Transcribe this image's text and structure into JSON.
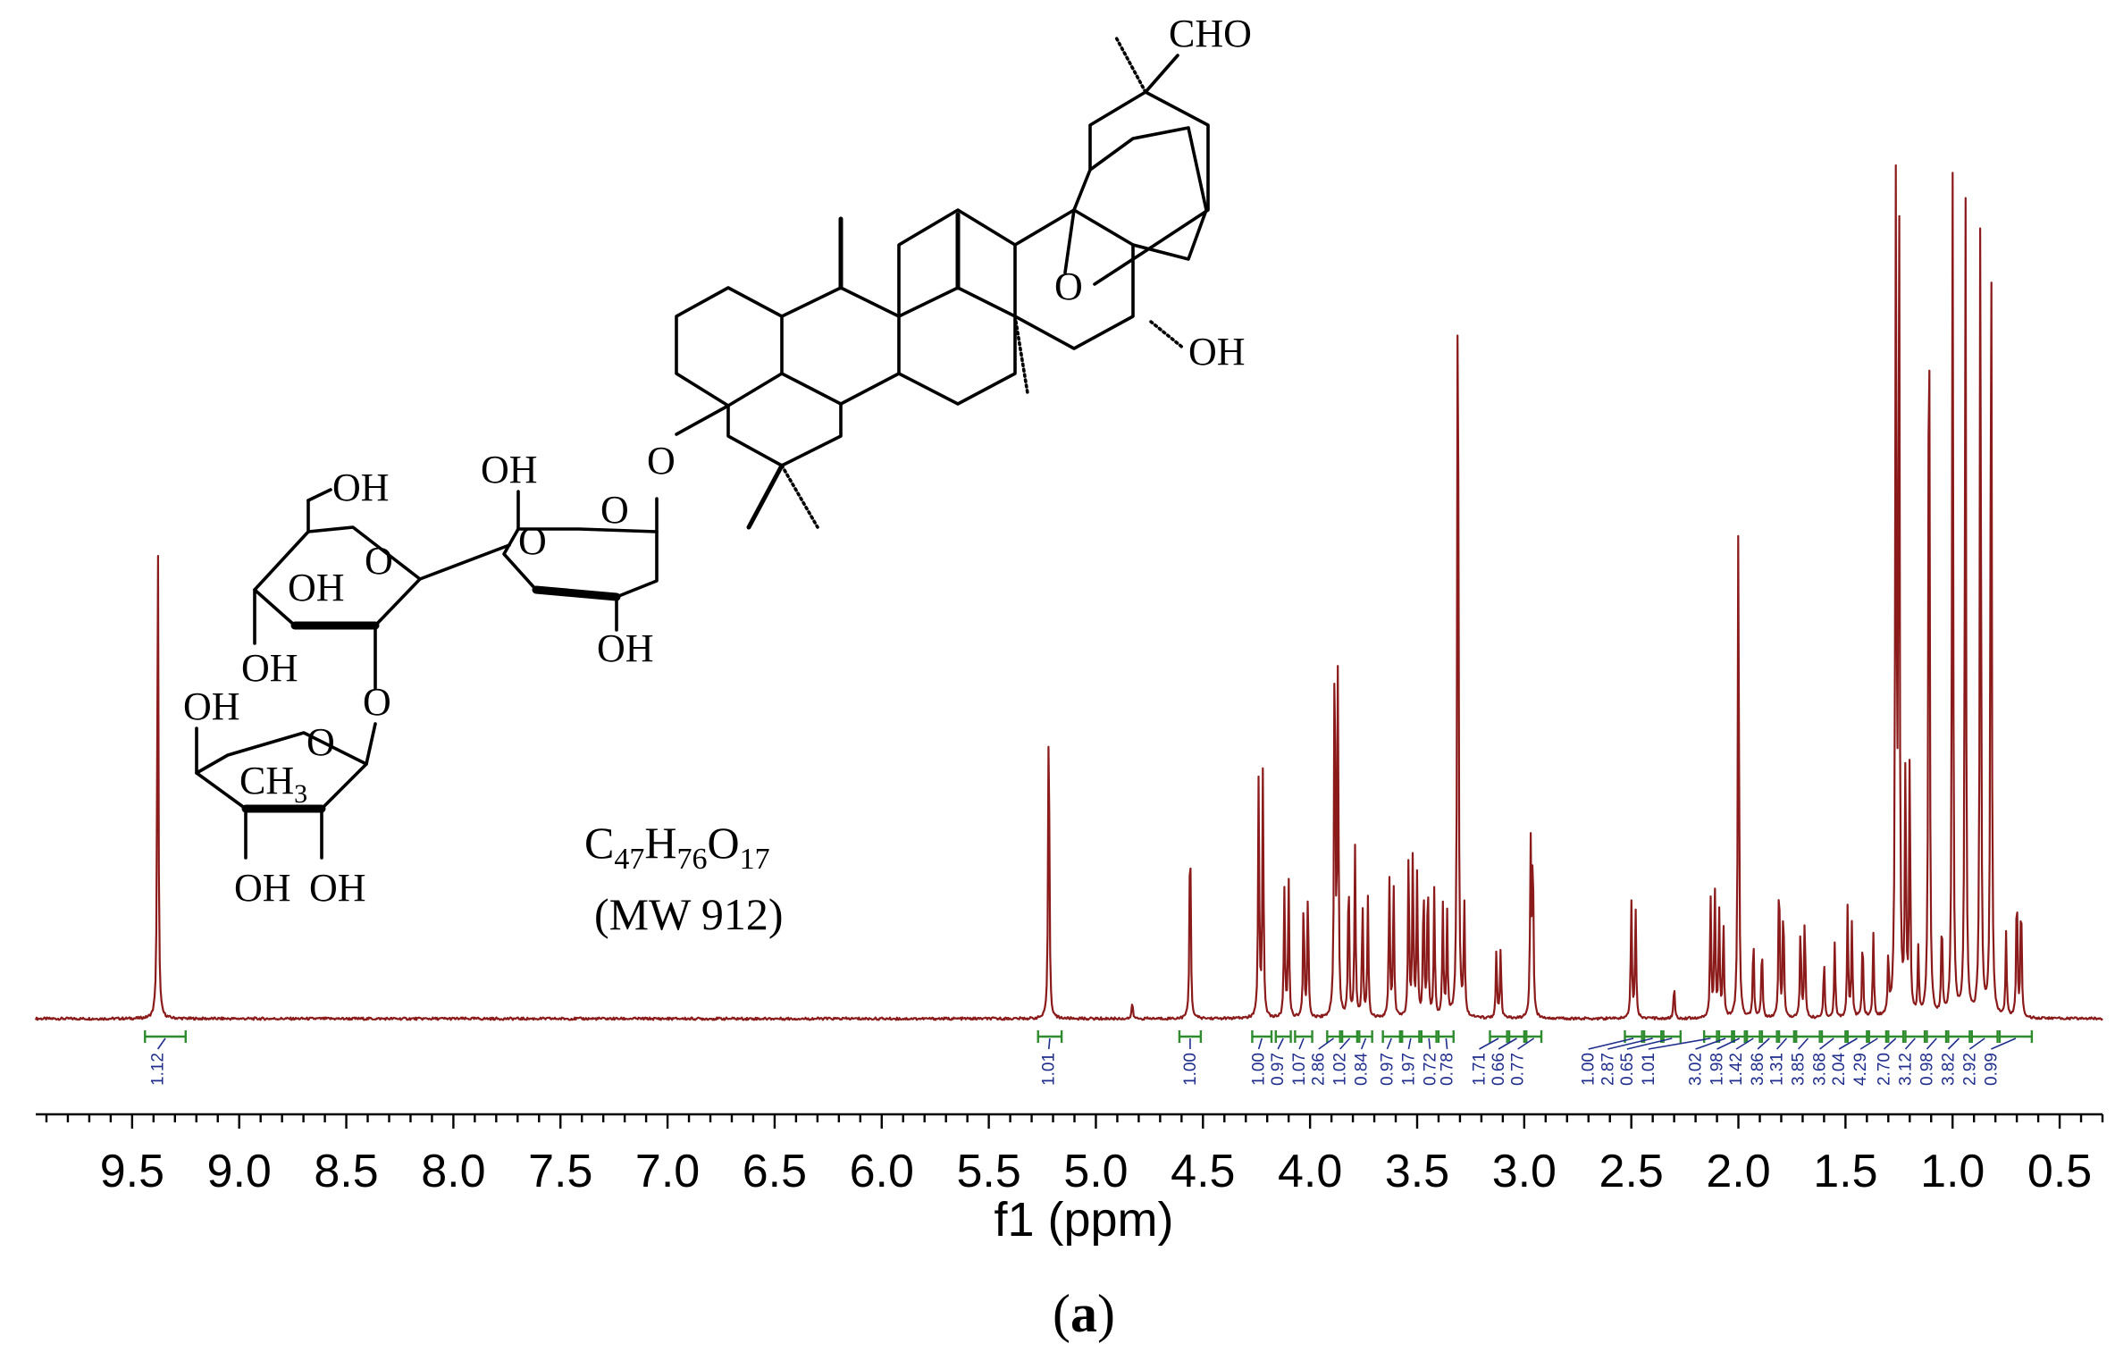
{
  "chart_data": {
    "type": "line",
    "xlabel": "f1 (ppm)",
    "x_reversed": true,
    "xlim": [
      9.95,
      0.3
    ],
    "ticks": [
      "9.5",
      "9.0",
      "8.5",
      "8.0",
      "7.5",
      "7.0",
      "6.5",
      "6.0",
      "5.5",
      "5.0",
      "4.5",
      "4.0",
      "3.5",
      "3.0",
      "2.5",
      "2.0",
      "1.5",
      "1.0",
      "0.5"
    ],
    "grid": false,
    "colors": {
      "spectrum": "#8b1a1a",
      "integral_bracket": "#2e8b2e",
      "integral_label": "#1f2e8c",
      "text": "#000000"
    },
    "peaks": [
      {
        "x": 9.38,
        "y": 0.59
      },
      {
        "x": 5.22,
        "y": 0.39
      },
      {
        "x": 4.83,
        "y": 0.02
      },
      {
        "x": 4.56,
        "y": 0.24
      },
      {
        "x": 4.24,
        "y": 0.28
      },
      {
        "x": 4.22,
        "y": 0.29
      },
      {
        "x": 4.12,
        "y": 0.15
      },
      {
        "x": 4.1,
        "y": 0.16
      },
      {
        "x": 4.03,
        "y": 0.14
      },
      {
        "x": 4.01,
        "y": 0.15
      },
      {
        "x": 3.885,
        "y": 0.47
      },
      {
        "x": 3.87,
        "y": 0.4
      },
      {
        "x": 3.82,
        "y": 0.18
      },
      {
        "x": 3.79,
        "y": 0.2
      },
      {
        "x": 3.755,
        "y": 0.14
      },
      {
        "x": 3.73,
        "y": 0.14
      },
      {
        "x": 3.63,
        "y": 0.17
      },
      {
        "x": 3.61,
        "y": 0.16
      },
      {
        "x": 3.54,
        "y": 0.19
      },
      {
        "x": 3.52,
        "y": 0.19
      },
      {
        "x": 3.5,
        "y": 0.17
      },
      {
        "x": 3.47,
        "y": 0.16
      },
      {
        "x": 3.45,
        "y": 0.17
      },
      {
        "x": 3.42,
        "y": 0.15
      },
      {
        "x": 3.38,
        "y": 0.13
      },
      {
        "x": 3.36,
        "y": 0.12
      },
      {
        "x": 3.31,
        "y": 1.0
      },
      {
        "x": 3.28,
        "y": 0.13
      },
      {
        "x": 3.13,
        "y": 0.08
      },
      {
        "x": 3.11,
        "y": 0.08
      },
      {
        "x": 2.97,
        "y": 0.2
      },
      {
        "x": 2.96,
        "y": 0.2
      },
      {
        "x": 2.5,
        "y": 0.14
      },
      {
        "x": 2.48,
        "y": 0.13
      },
      {
        "x": 2.3,
        "y": 0.04
      },
      {
        "x": 2.13,
        "y": 0.14
      },
      {
        "x": 2.11,
        "y": 0.15
      },
      {
        "x": 2.09,
        "y": 0.13
      },
      {
        "x": 2.07,
        "y": 0.11
      },
      {
        "x": 2.0,
        "y": 0.6
      },
      {
        "x": 1.93,
        "y": 0.1
      },
      {
        "x": 1.89,
        "y": 0.09
      },
      {
        "x": 1.81,
        "y": 0.18
      },
      {
        "x": 1.79,
        "y": 0.14
      },
      {
        "x": 1.71,
        "y": 0.11
      },
      {
        "x": 1.69,
        "y": 0.12
      },
      {
        "x": 1.6,
        "y": 0.07
      },
      {
        "x": 1.55,
        "y": 0.09
      },
      {
        "x": 1.49,
        "y": 0.13
      },
      {
        "x": 1.47,
        "y": 0.11
      },
      {
        "x": 1.42,
        "y": 0.1
      },
      {
        "x": 1.37,
        "y": 0.1
      },
      {
        "x": 1.3,
        "y": 0.07
      },
      {
        "x": 1.265,
        "y": 1.0
      },
      {
        "x": 1.25,
        "y": 1.0
      },
      {
        "x": 1.22,
        "y": 0.29
      },
      {
        "x": 1.2,
        "y": 0.3
      },
      {
        "x": 1.16,
        "y": 0.08
      },
      {
        "x": 1.11,
        "y": 1.0
      },
      {
        "x": 1.05,
        "y": 0.12
      },
      {
        "x": 1.0,
        "y": 1.0
      },
      {
        "x": 0.94,
        "y": 1.0
      },
      {
        "x": 0.87,
        "y": 1.0
      },
      {
        "x": 0.82,
        "y": 1.0
      },
      {
        "x": 0.75,
        "y": 0.1
      },
      {
        "x": 0.7,
        "y": 0.16
      },
      {
        "x": 0.68,
        "y": 0.15
      }
    ],
    "integrals": [
      {
        "x1": 9.44,
        "x2": 9.25,
        "x": 9.38,
        "label": "1.12"
      },
      {
        "x1": 5.27,
        "x2": 5.16,
        "x": 5.22,
        "label": "1.01"
      },
      {
        "x1": 4.61,
        "x2": 4.51,
        "x": 4.56,
        "label": "1.00"
      },
      {
        "x1": 4.27,
        "x2": 4.18,
        "x": 4.24,
        "label": "1.00"
      },
      {
        "x1": 4.16,
        "x2": 4.09,
        "x": 4.15,
        "label": "0.97"
      },
      {
        "x1": 4.07,
        "x2": 3.99,
        "x": 4.05,
        "label": "1.07"
      },
      {
        "x1": 3.92,
        "x2": 3.86,
        "x": 3.96,
        "label": "2.86"
      },
      {
        "x1": 3.85,
        "x2": 3.78,
        "x": 3.86,
        "label": "1.02"
      },
      {
        "x1": 3.77,
        "x2": 3.71,
        "x": 3.76,
        "label": "0.84"
      },
      {
        "x1": 3.66,
        "x2": 3.58,
        "x": 3.64,
        "label": "0.97"
      },
      {
        "x1": 3.57,
        "x2": 3.49,
        "x": 3.54,
        "label": "1.97"
      },
      {
        "x1": 3.48,
        "x2": 3.41,
        "x": 3.44,
        "label": "0.72"
      },
      {
        "x1": 3.4,
        "x2": 3.33,
        "x": 3.36,
        "label": "0.78"
      },
      {
        "x1": 3.16,
        "x2": 3.08,
        "x": 3.21,
        "label": "1.71"
      },
      {
        "x1": 3.07,
        "x2": 3.0,
        "x": 3.12,
        "label": "0.66"
      },
      {
        "x1": 2.99,
        "x2": 2.92,
        "x": 3.03,
        "label": "0.77"
      },
      {
        "x1": 2.53,
        "x2": 2.45,
        "x": 2.7,
        "label": "1.00"
      },
      {
        "x1": 2.44,
        "x2": 2.36,
        "x": 2.61,
        "label": "2.87"
      },
      {
        "x1": 2.35,
        "x2": 2.27,
        "x": 2.52,
        "label": "0.65"
      },
      {
        "x1": 2.16,
        "x2": 2.1,
        "x": 2.42,
        "label": "1.01"
      },
      {
        "x1": 2.09,
        "x2": 2.03,
        "x": 2.2,
        "label": "3.02"
      },
      {
        "x1": 2.02,
        "x2": 1.97,
        "x": 2.1,
        "label": "1.98"
      },
      {
        "x1": 1.96,
        "x2": 1.9,
        "x": 2.01,
        "label": "1.42"
      },
      {
        "x1": 1.89,
        "x2": 1.82,
        "x": 1.91,
        "label": "3.86"
      },
      {
        "x1": 1.81,
        "x2": 1.74,
        "x": 1.82,
        "label": "1.31"
      },
      {
        "x1": 1.73,
        "x2": 1.62,
        "x": 1.72,
        "label": "3.85"
      },
      {
        "x1": 1.61,
        "x2": 1.5,
        "x": 1.62,
        "label": "3.68"
      },
      {
        "x1": 1.49,
        "x2": 1.4,
        "x": 1.53,
        "label": "2.04"
      },
      {
        "x1": 1.39,
        "x2": 1.31,
        "x": 1.43,
        "label": "4.29"
      },
      {
        "x1": 1.3,
        "x2": 1.23,
        "x": 1.32,
        "label": "2.70"
      },
      {
        "x1": 1.22,
        "x2": 1.13,
        "x": 1.22,
        "label": "3.12"
      },
      {
        "x1": 1.12,
        "x2": 1.03,
        "x": 1.12,
        "label": "0.98"
      },
      {
        "x1": 1.02,
        "x2": 0.92,
        "x": 1.02,
        "label": "3.82"
      },
      {
        "x1": 0.91,
        "x2": 0.79,
        "x": 0.92,
        "label": "2.92"
      },
      {
        "x1": 0.78,
        "x2": 0.63,
        "x": 0.82,
        "label": "0.99"
      }
    ]
  },
  "structure": {
    "labels": [
      "CHO",
      "OH",
      "O",
      "O",
      "O",
      "OH",
      "OH",
      "O",
      "OH",
      "OH",
      "O",
      "O",
      "OH",
      "O",
      "OH",
      "CH",
      "3",
      "OH",
      "OH"
    ],
    "formula_parts": [
      "C",
      "47",
      "H",
      "76",
      "O",
      "17"
    ],
    "mw": "(MW 912)"
  },
  "panel_label": {
    "open": "(",
    "letter": "a",
    "close": ")"
  }
}
